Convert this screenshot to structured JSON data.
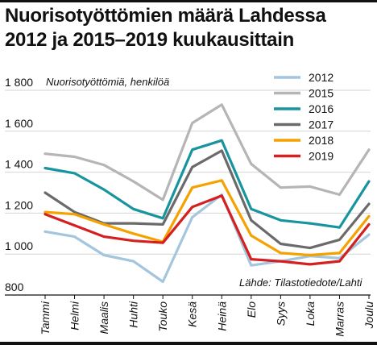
{
  "title_line1": "Nuorisotyöttömien määrä Lahdessa",
  "title_line2": "2012 ja 2015–2019 kuukausittain",
  "chart_data": {
    "type": "line",
    "title": "Nuorisotyöttömien määrä Lahdessa 2012 ja 2015–2019 kuukausittain",
    "ylabel": "Nuorisotyöttömiä, henkilöä",
    "source": "Lähde: Tilastotiedote/Lahti",
    "ylim": [
      800,
      1800
    ],
    "yticks": [
      800,
      1000,
      1200,
      1400,
      1600,
      1800
    ],
    "ytick_labels": [
      "800",
      "1 000",
      "1 200",
      "1 400",
      "1 600",
      "1 800"
    ],
    "categories": [
      "Tammi",
      "Helmi",
      "Maalis",
      "Huhti",
      "Touko",
      "Kesä",
      "Heinä",
      "Elo",
      "Syys",
      "Loka",
      "Marras",
      "Joulu"
    ],
    "grid": true,
    "legend_position": "top-right",
    "series": [
      {
        "name": "2012",
        "color": "#a3c6de",
        "values": [
          1110,
          1085,
          995,
          965,
          865,
          1180,
          1290,
          945,
          965,
          990,
          980,
          1095
        ]
      },
      {
        "name": "2015",
        "color": "#b5b5b5",
        "values": [
          1490,
          1475,
          1435,
          1355,
          1265,
          1640,
          1730,
          1440,
          1325,
          1330,
          1290,
          1510
        ]
      },
      {
        "name": "2016",
        "color": "#18949e",
        "values": [
          1420,
          1395,
          1315,
          1220,
          1175,
          1510,
          1555,
          1220,
          1165,
          1150,
          1130,
          1355
        ]
      },
      {
        "name": "2017",
        "color": "#6a6a6a",
        "values": [
          1300,
          1205,
          1150,
          1150,
          1145,
          1425,
          1505,
          1165,
          1050,
          1030,
          1070,
          1245
        ]
      },
      {
        "name": "2018",
        "color": "#f5a100",
        "values": [
          1205,
          1195,
          1145,
          1100,
          1060,
          1325,
          1360,
          1090,
          1005,
          995,
          1005,
          1185
        ]
      },
      {
        "name": "2019",
        "color": "#d42020",
        "values": [
          1195,
          1140,
          1085,
          1065,
          1055,
          1230,
          1285,
          975,
          965,
          950,
          965,
          1145
        ]
      }
    ]
  }
}
